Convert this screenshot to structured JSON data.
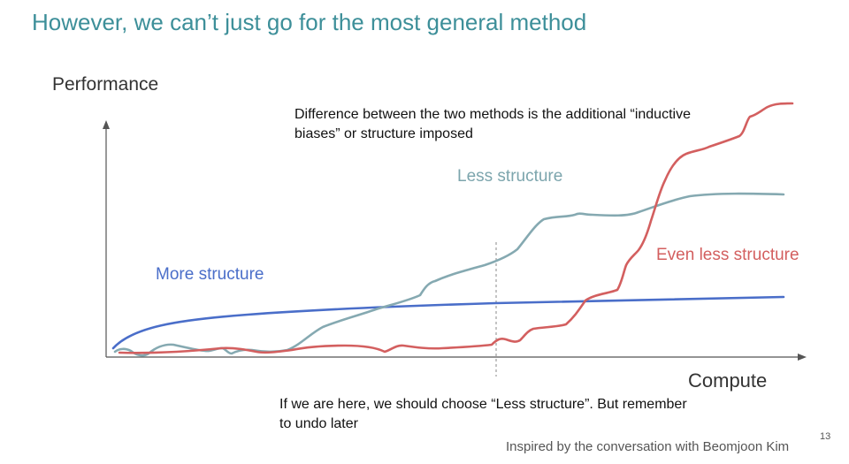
{
  "slide": {
    "title": "However, we can’t just go for the most general method",
    "page_number": "13",
    "credit": "Inspired by the conversation with Beomjoon Kim"
  },
  "axes": {
    "y_label": "Performance",
    "x_label": "Compute"
  },
  "notes": {
    "top": "Difference between the two methods is the additional “inductive biases” or structure imposed",
    "bottom": "If we are here, we should choose “Less structure”. But remember to undo later"
  },
  "curves": {
    "more": {
      "label": "More structure",
      "color": "#4a6ec9"
    },
    "less": {
      "label": "Less structure",
      "color": "#85a9b1"
    },
    "even_less": {
      "label": "Even less structure",
      "color": "#d35f5f"
    }
  },
  "colors": {
    "title": "#3d8f99",
    "axis": "#555555",
    "marker": "#888888"
  }
}
